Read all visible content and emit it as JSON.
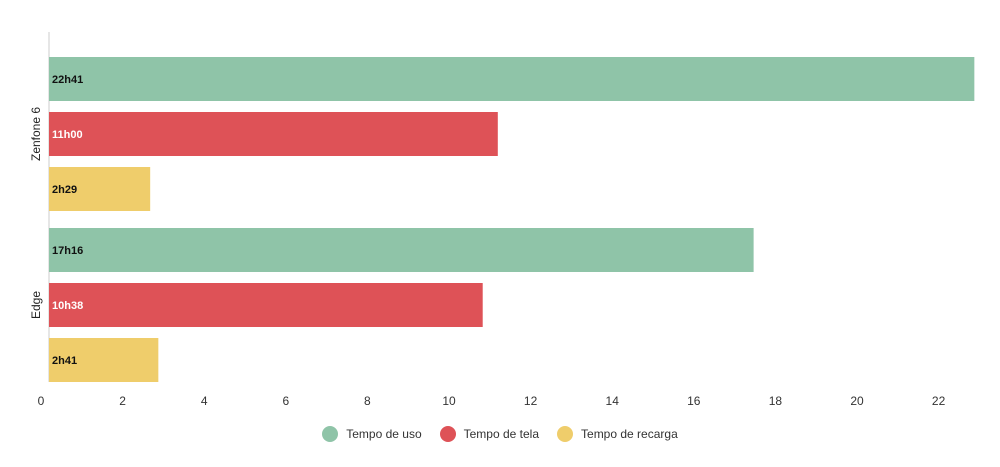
{
  "chart_data": {
    "type": "bar",
    "orientation": "horizontal",
    "categories": [
      "Zenfone 6",
      "Edge"
    ],
    "series": [
      {
        "name": "Tempo de uso",
        "color": "#8fc4a8",
        "values": [
          22.68,
          17.27
        ],
        "labels": [
          "22h41",
          "17h16"
        ]
      },
      {
        "name": "Tempo de tela",
        "color": "#de5257",
        "values": [
          11.0,
          10.63
        ],
        "labels": [
          "11h00",
          "10h38"
        ]
      },
      {
        "name": "Tempo de recarga",
        "color": "#efcd6b",
        "values": [
          2.48,
          2.68
        ],
        "labels": [
          "2h29",
          "2h41"
        ]
      }
    ],
    "xlim": [
      0,
      22.5
    ],
    "x_ticks": [
      "0",
      "2",
      "4",
      "6",
      "8",
      "10",
      "12",
      "14",
      "16",
      "18",
      "20",
      "22"
    ],
    "grid": false,
    "legend_position": "bottom"
  }
}
